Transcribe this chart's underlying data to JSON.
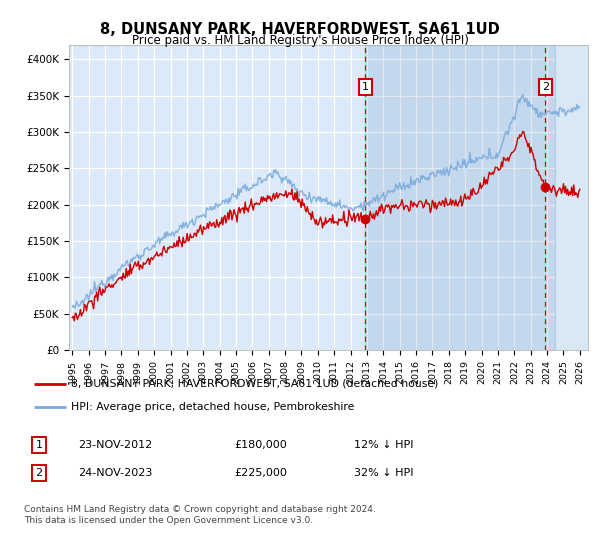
{
  "title": "8, DUNSANY PARK, HAVERFORDWEST, SA61 1UD",
  "subtitle": "Price paid vs. HM Land Registry's House Price Index (HPI)",
  "ylabel_ticks": [
    "£0",
    "£50K",
    "£100K",
    "£150K",
    "£200K",
    "£250K",
    "£300K",
    "£350K",
    "£400K"
  ],
  "ytick_values": [
    0,
    50000,
    100000,
    150000,
    200000,
    250000,
    300000,
    350000,
    400000
  ],
  "ylim": [
    0,
    420000
  ],
  "xlim_start": 1994.8,
  "xlim_end": 2026.5,
  "background_color": "#dce9f8",
  "background_right": "#e8f0f8",
  "red_line_color": "#cc0000",
  "blue_line_color": "#7aaadd",
  "marker1_x": 2012.9,
  "marker1_price": 180000,
  "marker1_label": "1",
  "marker2_x": 2023.9,
  "marker2_price": 225000,
  "marker2_label": "2",
  "legend_line1": "8, DUNSANY PARK, HAVERFORDWEST, SA61 1UD (detached house)",
  "legend_line2": "HPI: Average price, detached house, Pembrokeshire",
  "table_row1_num": "1",
  "table_row1_date": "23-NOV-2012",
  "table_row1_price": "£180,000",
  "table_row1_hpi": "12% ↓ HPI",
  "table_row2_num": "2",
  "table_row2_date": "24-NOV-2023",
  "table_row2_price": "£225,000",
  "table_row2_hpi": "32% ↓ HPI",
  "footer": "Contains HM Land Registry data © Crown copyright and database right 2024.\nThis data is licensed under the Open Government Licence v3.0.",
  "xtick_years": [
    1995,
    1996,
    1997,
    1998,
    1999,
    2000,
    2001,
    2002,
    2003,
    2004,
    2005,
    2006,
    2007,
    2008,
    2009,
    2010,
    2011,
    2012,
    2013,
    2014,
    2015,
    2016,
    2017,
    2018,
    2019,
    2020,
    2021,
    2022,
    2023,
    2024,
    2025,
    2026
  ]
}
